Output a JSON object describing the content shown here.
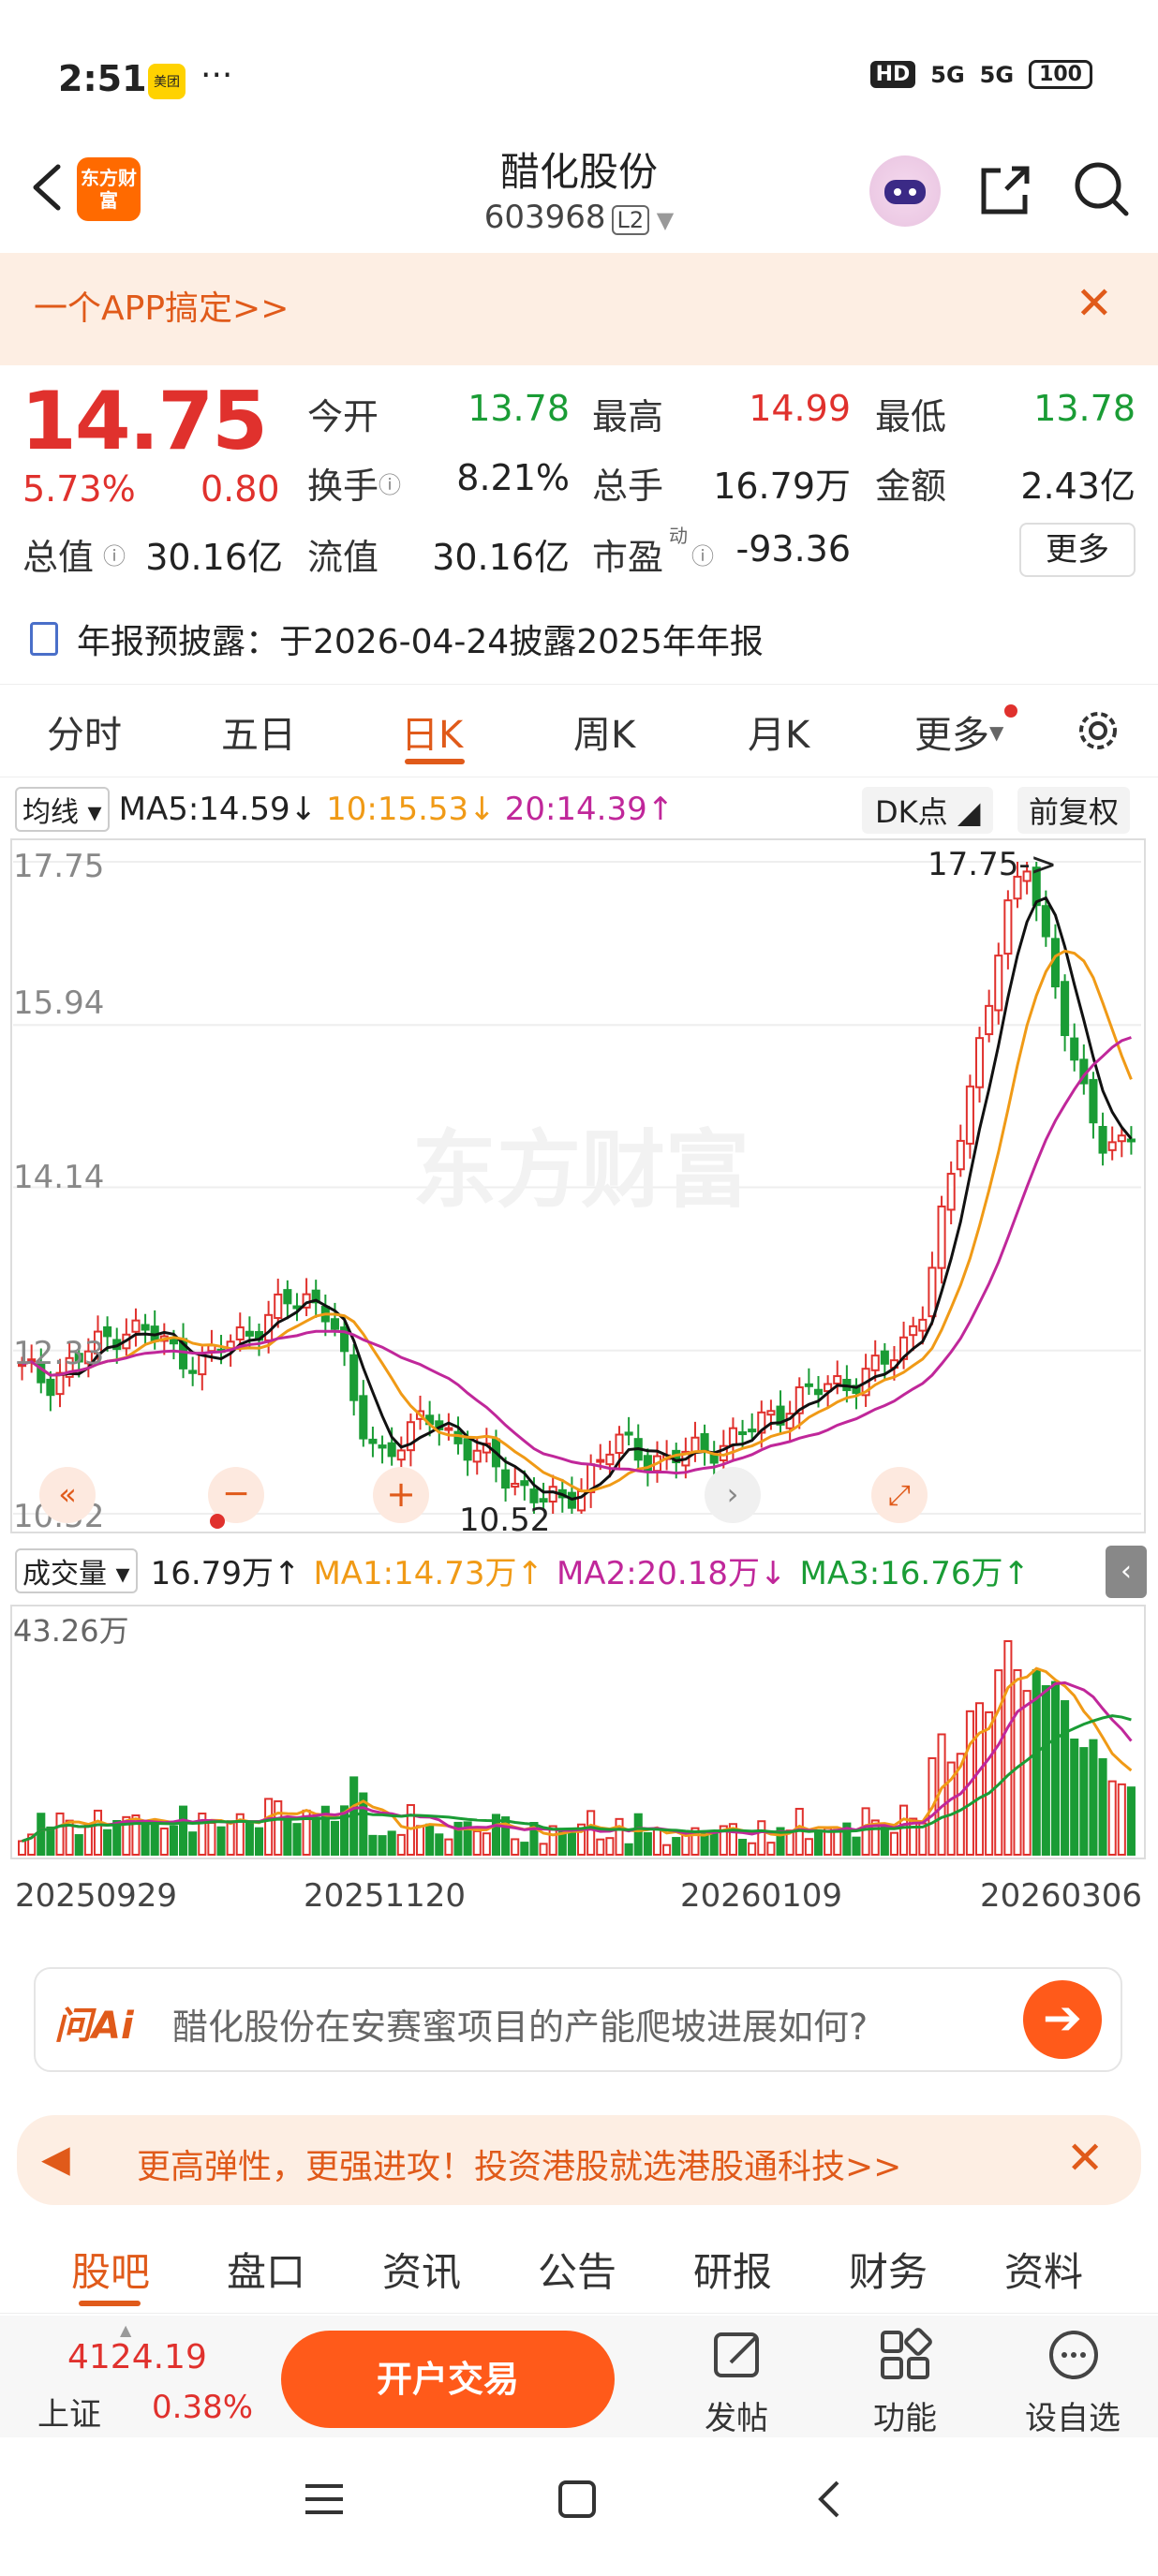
{
  "status": {
    "time": "2:51",
    "app_badge": "美团",
    "dots": "···",
    "network": "HD",
    "signal1": "5G",
    "signal2": "5G",
    "battery": "100"
  },
  "header": {
    "logo_text": "东方财富",
    "stock_name": "醋化股份",
    "stock_code": "603968",
    "level": "L2"
  },
  "promo": {
    "text": "一个APP搞定>>"
  },
  "quote": {
    "price": "14.75",
    "pct": "5.73%",
    "change": "0.80",
    "open_label": "今开",
    "open": "13.78",
    "high_label": "最高",
    "high": "14.99",
    "low_label": "最低",
    "low": "13.78",
    "turnover_label": "换手",
    "turnover": "8.21%",
    "volume_label": "总手",
    "volume": "16.79万",
    "amount_label": "金额",
    "amount": "2.43亿",
    "mcap_label": "总值",
    "mcap": "30.16亿",
    "float_label": "流值",
    "float": "30.16亿",
    "pe_label": "市盈",
    "pe_sup": "动",
    "pe": "-93.36",
    "more": "更多",
    "disclosure": "年报预披露：于2026-04-24披露2025年年报"
  },
  "period_tabs": [
    "分时",
    "五日",
    "日K",
    "周K",
    "月K",
    "更多"
  ],
  "ma": {
    "selector": "均线",
    "ma5": "MA5:14.59",
    "ma5_arrow": "↓",
    "ma10": "10:15.53",
    "ma10_arrow": "↓",
    "ma20": "20:14.39",
    "ma20_arrow": "↑",
    "dk": "DK点",
    "adjust": "前复权"
  },
  "chart_labels": {
    "y_ticks": [
      "17.75",
      "15.94",
      "14.14",
      "12.33",
      "10.52"
    ],
    "max_marker": "17.75->",
    "min_marker": "10.52",
    "watermark": "东方财富"
  },
  "volume": {
    "selector": "成交量",
    "total": "16.79万",
    "total_arrow": "↑",
    "ma1": "MA1:14.73万",
    "ma1_arrow": "↑",
    "ma2": "MA2:20.18万",
    "ma2_arrow": "↓",
    "ma3": "MA3:16.76万",
    "ma3_arrow": "↑",
    "max": "43.26万"
  },
  "dates": [
    "20250929",
    "20251120",
    "20260109",
    "20260306"
  ],
  "ai": {
    "logo": "问Ai",
    "question": "醋化股份在安赛蜜项目的产能爬坡进展如何?"
  },
  "ad": {
    "text": "更高弹性，更强进攻！投资港股就选港股通科技>>"
  },
  "info_tabs": [
    "股吧",
    "盘口",
    "资讯",
    "公告",
    "研报",
    "财务",
    "资料"
  ],
  "footer": {
    "index_value": "4124.19",
    "index_name": "上证",
    "index_pct": "0.38%",
    "trade": "开户交易",
    "post": "发帖",
    "func": "功能",
    "watch": "设自选"
  },
  "colors": {
    "up": "#e0312d",
    "down": "#1a9c35",
    "accent": "#e05a1a",
    "ma5": "#111111",
    "ma10": "#f09a16",
    "ma20": "#c0279a"
  },
  "chart_data": {
    "type": "candlestick",
    "y_range": [
      10.52,
      17.75
    ],
    "y_ticks": [
      17.75,
      15.94,
      14.14,
      12.33,
      10.52
    ],
    "x_ticks": [
      "20250929",
      "20251120",
      "20260109",
      "20260306"
    ],
    "close_path": [
      12.1,
      12.0,
      12.2,
      12.4,
      12.6,
      12.5,
      12.3,
      12.2,
      12.4,
      12.6,
      12.8,
      12.9,
      12.8,
      11.5,
      11.2,
      11.4,
      11.6,
      11.3,
      11.1,
      10.9,
      10.7,
      10.6,
      11.0,
      11.3,
      11.2,
      11.1,
      11.2,
      11.3,
      11.4,
      11.6,
      11.8,
      11.9,
      12.0,
      12.1,
      12.3,
      12.9,
      14.2,
      15.6,
      17.0,
      17.75,
      16.5,
      15.2,
      14.6,
      14.75
    ],
    "volume_max": "43.26万"
  }
}
